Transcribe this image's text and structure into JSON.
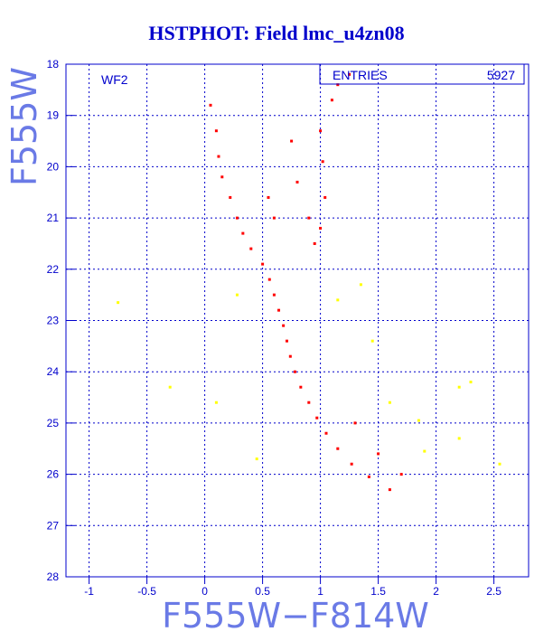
{
  "title": "HSTPHOT: Field lmc_u4zn08",
  "chart_data": {
    "type": "scatter",
    "title": "HSTPHOT: Field lmc_u4zn08",
    "xlabel": "F555W−F814W",
    "ylabel": "F555W",
    "xlim": [
      -1.2,
      2.8
    ],
    "ylim": [
      28,
      18
    ],
    "y_inverted": true,
    "x_ticks": [
      -1,
      -0.5,
      0,
      0.5,
      1,
      1.5,
      2,
      2.5
    ],
    "x_tick_labels": [
      "-1",
      "-0.5",
      "0",
      "0.5",
      "1",
      "1.5",
      "2",
      "2.5"
    ],
    "y_ticks": [
      18,
      19,
      20,
      21,
      22,
      23,
      24,
      25,
      26,
      27,
      28
    ],
    "grid": true,
    "panel_label": "WF2",
    "stats_box": {
      "label": "ENTRIES",
      "value": "5927"
    },
    "series": [
      {
        "color": "#ff0000",
        "points": [
          [
            0.05,
            18.8
          ],
          [
            0.1,
            19.3
          ],
          [
            0.12,
            19.8
          ],
          [
            0.15,
            20.2
          ],
          [
            0.22,
            20.6
          ],
          [
            0.28,
            21.0
          ],
          [
            0.33,
            21.3
          ],
          [
            0.4,
            21.6
          ],
          [
            0.5,
            21.9
          ],
          [
            0.56,
            22.2
          ],
          [
            0.6,
            22.5
          ],
          [
            0.64,
            22.8
          ],
          [
            0.68,
            23.1
          ],
          [
            0.71,
            23.4
          ],
          [
            0.74,
            23.7
          ],
          [
            0.78,
            24.0
          ],
          [
            0.83,
            24.3
          ],
          [
            0.9,
            24.6
          ],
          [
            0.97,
            24.9
          ],
          [
            1.05,
            25.2
          ],
          [
            1.15,
            25.5
          ],
          [
            1.27,
            25.8
          ],
          [
            1.42,
            26.05
          ],
          [
            1.6,
            26.3
          ],
          [
            1.0,
            19.3
          ],
          [
            1.02,
            19.9
          ],
          [
            1.04,
            20.6
          ],
          [
            1.0,
            21.2
          ],
          [
            0.95,
            21.5
          ],
          [
            1.1,
            18.7
          ],
          [
            1.15,
            18.4
          ],
          [
            1.25,
            18.2
          ],
          [
            0.55,
            20.6
          ],
          [
            0.6,
            21.0
          ],
          [
            0.9,
            21.0
          ],
          [
            0.75,
            19.5
          ],
          [
            0.8,
            20.3
          ],
          [
            1.3,
            25.0
          ],
          [
            1.5,
            25.6
          ],
          [
            1.7,
            26.0
          ]
        ]
      },
      {
        "color": "#ffff00",
        "points": [
          [
            -0.75,
            22.65
          ],
          [
            -0.3,
            24.3
          ],
          [
            0.28,
            22.5
          ],
          [
            1.15,
            22.6
          ],
          [
            1.35,
            22.3
          ],
          [
            1.45,
            23.4
          ],
          [
            2.2,
            24.3
          ],
          [
            2.3,
            24.2
          ],
          [
            1.6,
            24.6
          ],
          [
            1.85,
            24.95
          ],
          [
            2.2,
            25.3
          ],
          [
            2.55,
            25.8
          ],
          [
            1.9,
            25.55
          ],
          [
            0.1,
            24.6
          ],
          [
            0.45,
            25.7
          ]
        ]
      }
    ]
  }
}
